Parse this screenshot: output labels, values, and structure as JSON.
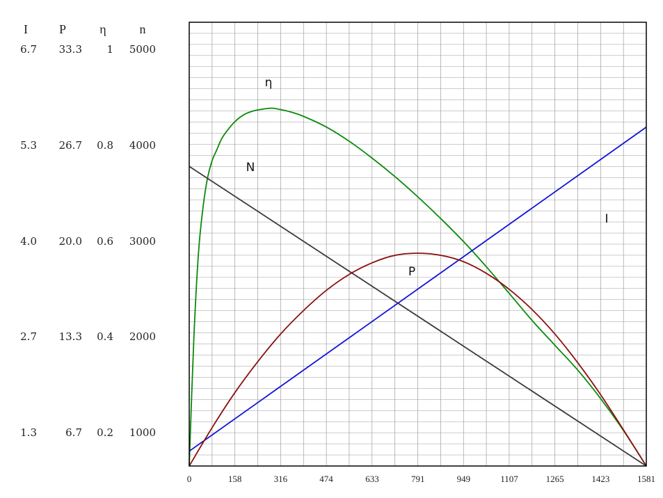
{
  "chart_data": {
    "type": "line",
    "x_ticks": [
      "0",
      "158",
      "316",
      "474",
      "633",
      "791",
      "949",
      "1107",
      "1265",
      "1423",
      "1581"
    ],
    "xlim": [
      0,
      1581
    ],
    "y_axes": [
      {
        "header": "I",
        "values": [
          "6.7",
          "5.3",
          "4.0",
          "2.7",
          "1.3"
        ],
        "range": [
          0,
          8.38
        ]
      },
      {
        "header": "P",
        "values": [
          "33.3",
          "26.7",
          "20.0",
          "13.3",
          "6.7"
        ],
        "range": [
          0,
          41.7
        ]
      },
      {
        "header": "η",
        "values": [
          "1",
          "0.8",
          "0.6",
          "0.4",
          "0.2"
        ],
        "range": [
          0,
          1.25
        ]
      },
      {
        "header": "n",
        "values": [
          "5000",
          "4000",
          "3000",
          "2000",
          "1000"
        ],
        "range": [
          0,
          6250
        ]
      }
    ],
    "grid": true,
    "series": [
      {
        "name": "η",
        "color": "#0a8a0a",
        "axis": "η",
        "x": [
          0,
          16,
          32,
          48,
          63,
          79,
          95,
          111,
          127,
          158,
          190,
          221,
          253,
          285,
          316,
          348,
          395,
          474,
          553,
          633,
          712,
          791,
          870,
          949,
          1028,
          1107,
          1186,
          1265,
          1344,
          1423,
          1502,
          1581
        ],
        "y": [
          0.0,
          0.36,
          0.6,
          0.73,
          0.81,
          0.86,
          0.89,
          0.92,
          0.94,
          0.97,
          0.99,
          1.0,
          1.005,
          1.008,
          1.004,
          0.998,
          0.985,
          0.955,
          0.915,
          0.867,
          0.815,
          0.758,
          0.697,
          0.632,
          0.561,
          0.486,
          0.41,
          0.34,
          0.27,
          0.19,
          0.1,
          0.0
        ]
      },
      {
        "name": "N",
        "color": "#3a3a3a",
        "axis": "n",
        "x": [
          0,
          1581
        ],
        "y": [
          4220,
          0
        ]
      },
      {
        "name": "I",
        "color": "#1212d6",
        "axis": "I",
        "x": [
          0,
          1581
        ],
        "y": [
          0.28,
          6.4
        ]
      },
      {
        "name": "P",
        "color": "#8b1010",
        "axis": "P",
        "x": [
          0,
          79,
          158,
          237,
          316,
          395,
          474,
          553,
          633,
          712,
          791,
          870,
          949,
          1028,
          1107,
          1186,
          1265,
          1344,
          1423,
          1502,
          1581
        ],
        "y": [
          0.0,
          3.6,
          6.9,
          9.8,
          12.4,
          14.6,
          16.5,
          18.0,
          19.1,
          19.8,
          20.0,
          19.8,
          19.2,
          18.1,
          16.6,
          14.7,
          12.4,
          9.7,
          6.7,
          3.4,
          0.0
        ]
      }
    ],
    "curve_labels": [
      "η",
      "N",
      "P",
      "I"
    ]
  }
}
